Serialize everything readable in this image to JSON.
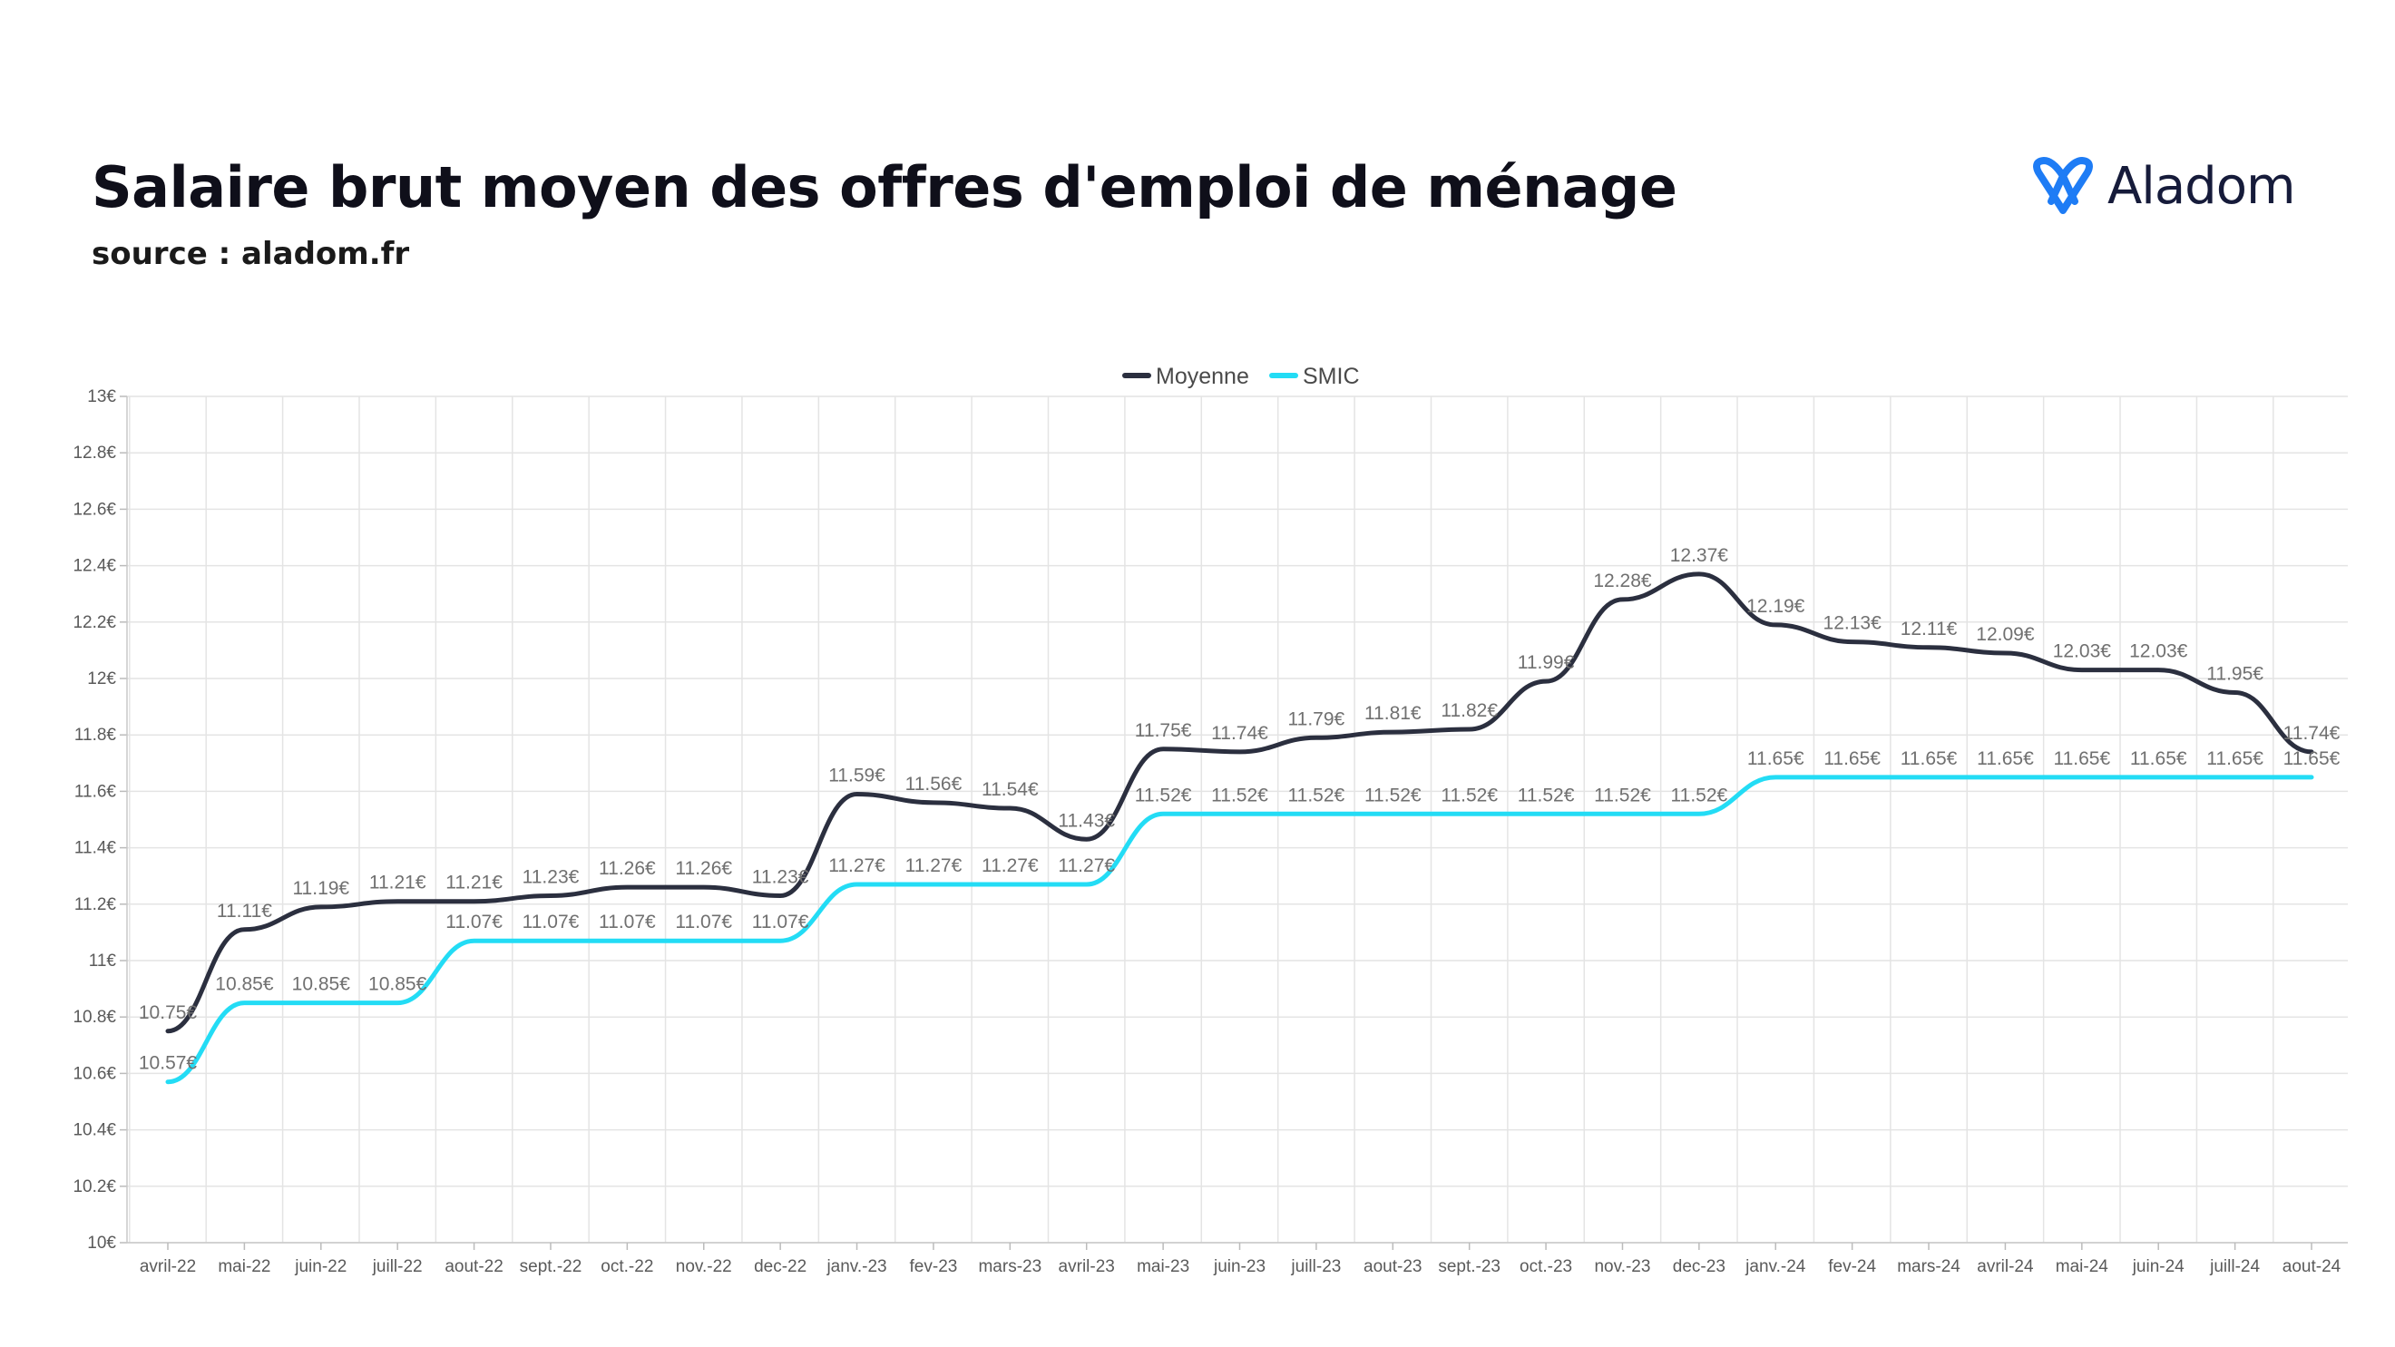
{
  "header": {
    "title": "Salaire brut moyen des offres d'emploi de ménage",
    "source": "source : aladom.fr"
  },
  "brand": {
    "name": "Aladom",
    "icon": "aladom-logo-icon",
    "color": "#1e7cf5"
  },
  "chart_data": {
    "type": "line",
    "title": "",
    "xlabel": "",
    "ylabel": "",
    "categories": [
      "avril-22",
      "mai-22",
      "juin-22",
      "juill-22",
      "aout-22",
      "sept.-22",
      "oct.-22",
      "nov.-22",
      "dec-22",
      "janv.-23",
      "fev-23",
      "mars-23",
      "avril-23",
      "mai-23",
      "juin-23",
      "juill-23",
      "aout-23",
      "sept.-23",
      "oct.-23",
      "nov.-23",
      "dec-23",
      "janv.-24",
      "fev-24",
      "mars-24",
      "avril-24",
      "mai-24",
      "juin-24",
      "juill-24",
      "aout-24"
    ],
    "ylim": [
      10,
      13
    ],
    "yticks": [
      10,
      10.2,
      10.4,
      10.6,
      10.8,
      11,
      11.2,
      11.4,
      11.6,
      11.8,
      12,
      12.2,
      12.4,
      12.6,
      12.8,
      13
    ],
    "ytick_labels": [
      "10€",
      "10.2€",
      "10.4€",
      "10.6€",
      "10.8€",
      "11€",
      "11.2€",
      "11.4€",
      "11.6€",
      "11.8€",
      "12€",
      "12.2€",
      "12.4€",
      "12.6€",
      "12.8€",
      "13€"
    ],
    "grid": true,
    "legend_position": "top-center",
    "series": [
      {
        "name": "Moyenne",
        "color": "#2b2f3f",
        "values": [
          10.75,
          11.11,
          11.19,
          11.21,
          11.21,
          11.23,
          11.26,
          11.26,
          11.23,
          11.59,
          11.56,
          11.54,
          11.43,
          11.75,
          11.74,
          11.79,
          11.81,
          11.82,
          11.99,
          12.28,
          12.37,
          12.19,
          12.13,
          12.11,
          12.09,
          12.03,
          12.03,
          11.95,
          11.74
        ],
        "labels": [
          "10.75€",
          "11.11€",
          "11.19€",
          "11.21€",
          "11.21€",
          "11.23€",
          "11.26€",
          "11.26€",
          "11.23€",
          "11.59€",
          "11.56€",
          "11.54€",
          "11.43€",
          "11.75€",
          "11.74€",
          "11.79€",
          "11.81€",
          "11.82€",
          "11.99€",
          "12.28€",
          "12.37€",
          "12.19€",
          "12.13€",
          "12.11€",
          "12.09€",
          "12.03€",
          "12.03€",
          "11.95€",
          "11.74€"
        ]
      },
      {
        "name": "SMIC",
        "color": "#23dcf5",
        "values": [
          10.57,
          10.85,
          10.85,
          10.85,
          11.07,
          11.07,
          11.07,
          11.07,
          11.07,
          11.27,
          11.27,
          11.27,
          11.27,
          11.52,
          11.52,
          11.52,
          11.52,
          11.52,
          11.52,
          11.52,
          11.52,
          11.65,
          11.65,
          11.65,
          11.65,
          11.65,
          11.65,
          11.65,
          11.65
        ],
        "labels": [
          "10.57€",
          "10.85€",
          "10.85€",
          "10.85€",
          "11.07€",
          "11.07€",
          "11.07€",
          "11.07€",
          "11.07€",
          "11.27€",
          "11.27€",
          "11.27€",
          "11.27€",
          "11.52€",
          "11.52€",
          "11.52€",
          "11.52€",
          "11.52€",
          "11.52€",
          "11.52€",
          "11.52€",
          "11.65€",
          "11.65€",
          "11.65€",
          "11.65€",
          "11.65€",
          "11.65€",
          "11.65€",
          "11.65€"
        ]
      }
    ]
  }
}
